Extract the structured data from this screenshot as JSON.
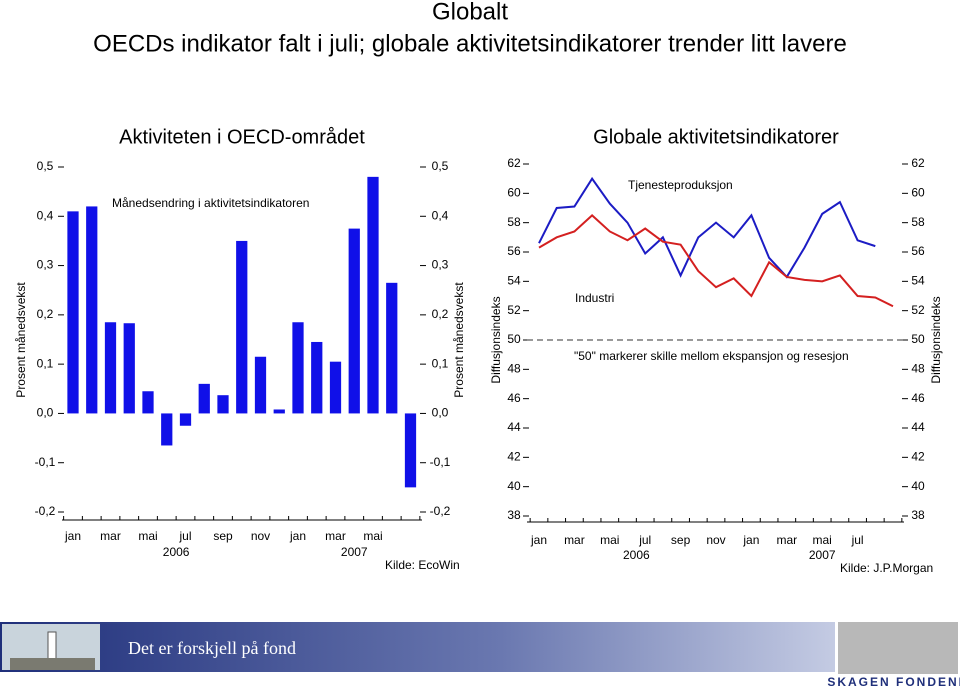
{
  "header": {
    "title": "Globalt",
    "subtitle": "OECDs indikator falt i juli; globale aktivitetsindikatorer trender litt lavere"
  },
  "chart_data": [
    {
      "type": "bar",
      "title": "Aktiviteten i OECD-området",
      "ylabel": "Prosent månedsvekst",
      "annotations": [
        "Månedsendring i aktivitetsindikatoren"
      ],
      "source": "Kilde: EcoWin",
      "categories": [
        "jan",
        null,
        "mar",
        null,
        "mai",
        null,
        "jul",
        null,
        "sep",
        null,
        "nov",
        null,
        "jan",
        null,
        "mar",
        null,
        "mai",
        null,
        null
      ],
      "years": [
        "2006",
        "2007"
      ],
      "values": [
        0.41,
        0.42,
        0.185,
        0.183,
        0.045,
        -0.065,
        -0.025,
        0.06,
        0.037,
        0.35,
        0.115,
        0.008,
        0.185,
        0.145,
        0.105,
        0.375,
        0.48,
        0.265,
        -0.15
      ],
      "color": "#1010e8",
      "ylim": [
        -0.2,
        0.5
      ],
      "yticks": [
        {
          "value": -0.2,
          "label": "-0,2"
        },
        {
          "value": -0.1,
          "label": "-0,1"
        },
        {
          "value": 0,
          "label": "0,0"
        },
        {
          "value": 0.1,
          "label": "0,1"
        },
        {
          "value": 0.2,
          "label": "0,2"
        },
        {
          "value": 0.3,
          "label": "0,3"
        },
        {
          "value": 0.4,
          "label": "0,4"
        },
        {
          "value": 0.5,
          "label": "0,5"
        }
      ]
    },
    {
      "type": "line",
      "title": "Globale aktivitetsindikatorer",
      "ylabel": "Diffusjonsindeks",
      "annotations": [
        "\"50\" markerer skille mellom ekspansjon og resesjon"
      ],
      "source": "Kilde: J.P.Morgan",
      "categories": [
        "jan",
        null,
        "mar",
        null,
        "mai",
        null,
        "jul",
        null,
        "sep",
        null,
        "nov",
        null,
        "jan",
        null,
        "mar",
        null,
        "mai",
        null,
        "jul",
        null,
        null
      ],
      "years": [
        "2006",
        "2007"
      ],
      "series": [
        {
          "name": "Tjenesteproduksjon",
          "color": "#1c1cc4",
          "values": [
            56.6,
            59.0,
            59.1,
            61.0,
            59.3,
            58.0,
            55.9,
            57.0,
            54.4,
            57.0,
            58.0,
            57.0,
            58.5,
            55.6,
            54.3,
            56.3,
            58.6,
            59.4,
            56.8,
            56.4,
            null
          ]
        },
        {
          "name": "Industri",
          "color": "#d42020",
          "values": [
            56.3,
            57.0,
            57.4,
            58.5,
            57.4,
            56.8,
            57.6,
            56.7,
            56.5,
            54.7,
            53.6,
            54.2,
            53.0,
            55.3,
            54.3,
            54.1,
            54.0,
            54.4,
            53.0,
            52.9,
            52.3
          ]
        }
      ],
      "ref_line": 50,
      "ylim": [
        38,
        62
      ],
      "yticks": [
        38,
        40,
        42,
        44,
        46,
        48,
        50,
        52,
        54,
        56,
        58,
        60,
        62
      ]
    }
  ],
  "footer": {
    "slogan": "Det er forskjell på fond",
    "logo": "SKAGEN FONDENE"
  }
}
